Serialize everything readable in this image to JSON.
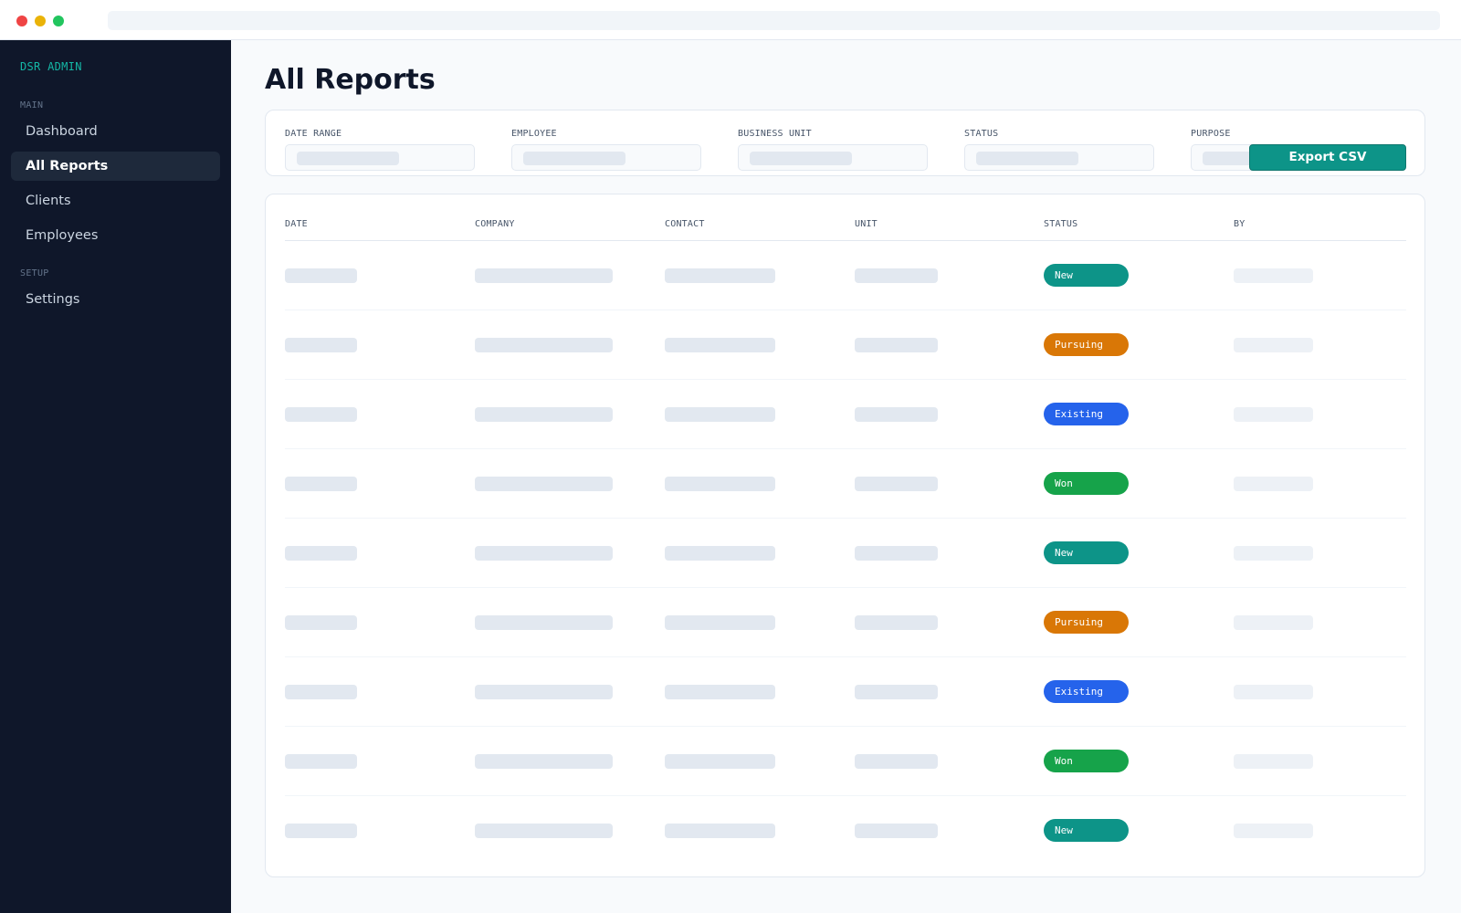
{
  "sidebar": {
    "brand": "DSR ADMIN",
    "sections": [
      {
        "label": "MAIN",
        "items": [
          {
            "label": "Dashboard",
            "active": false
          },
          {
            "label": "All Reports",
            "active": true
          },
          {
            "label": "Clients",
            "active": false
          },
          {
            "label": "Employees",
            "active": false
          }
        ]
      },
      {
        "label": "SETUP",
        "items": [
          {
            "label": "Settings",
            "active": false
          }
        ]
      }
    ]
  },
  "main": {
    "title": "All Reports",
    "filters": [
      "DATE RANGE",
      "EMPLOYEE",
      "BUSINESS UNIT",
      "STATUS",
      "PURPOSE"
    ],
    "export_label": "Export CSV",
    "table": {
      "columns": [
        "DATE",
        "COMPANY",
        "CONTACT",
        "UNIT",
        "STATUS",
        "BY"
      ],
      "rows": [
        {
          "status": "New"
        },
        {
          "status": "Pursuing"
        },
        {
          "status": "Existing"
        },
        {
          "status": "Won"
        },
        {
          "status": "New"
        },
        {
          "status": "Pursuing"
        },
        {
          "status": "Existing"
        },
        {
          "status": "Won"
        },
        {
          "status": "New"
        }
      ]
    }
  },
  "status_colors": {
    "New": "#0d9488",
    "Pursuing": "#d97706",
    "Existing": "#2563eb",
    "Won": "#16a34a"
  }
}
